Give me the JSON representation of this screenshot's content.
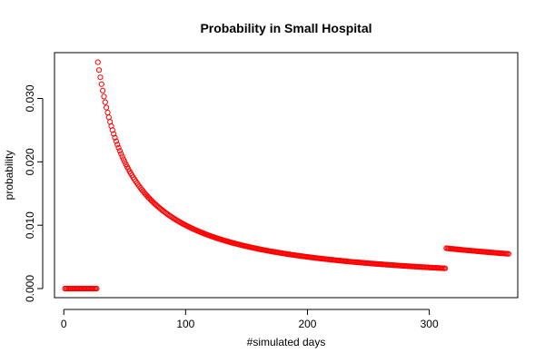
{
  "chart_data": {
    "type": "scatter",
    "title": "Probability in Small Hospital",
    "xlabel": "#simulated days",
    "ylabel": "probability",
    "xlim": [
      -7.6,
      372.6
    ],
    "ylim": [
      -0.00143,
      0.03723
    ],
    "xticks": [
      0,
      100,
      200,
      300
    ],
    "xtick_labels": [
      "0",
      "100",
      "200",
      "300"
    ],
    "yticks": [
      0.0,
      0.01,
      0.02,
      0.03
    ],
    "ytick_labels": [
      "0.000",
      "0.010",
      "0.020",
      "0.030"
    ],
    "grid": false,
    "legend": "none",
    "marker": "open-circle",
    "color": "#ff0000",
    "series": [
      {
        "segments": [
          {
            "x_start": 1,
            "x_end": 27,
            "rule": "y = 0"
          },
          {
            "x_start": 28,
            "x_end": 313,
            "rule": "y = 1 / x"
          },
          {
            "x_start": 314,
            "x_end": 365,
            "rule": "y = 2 / x"
          }
        ]
      }
    ]
  }
}
